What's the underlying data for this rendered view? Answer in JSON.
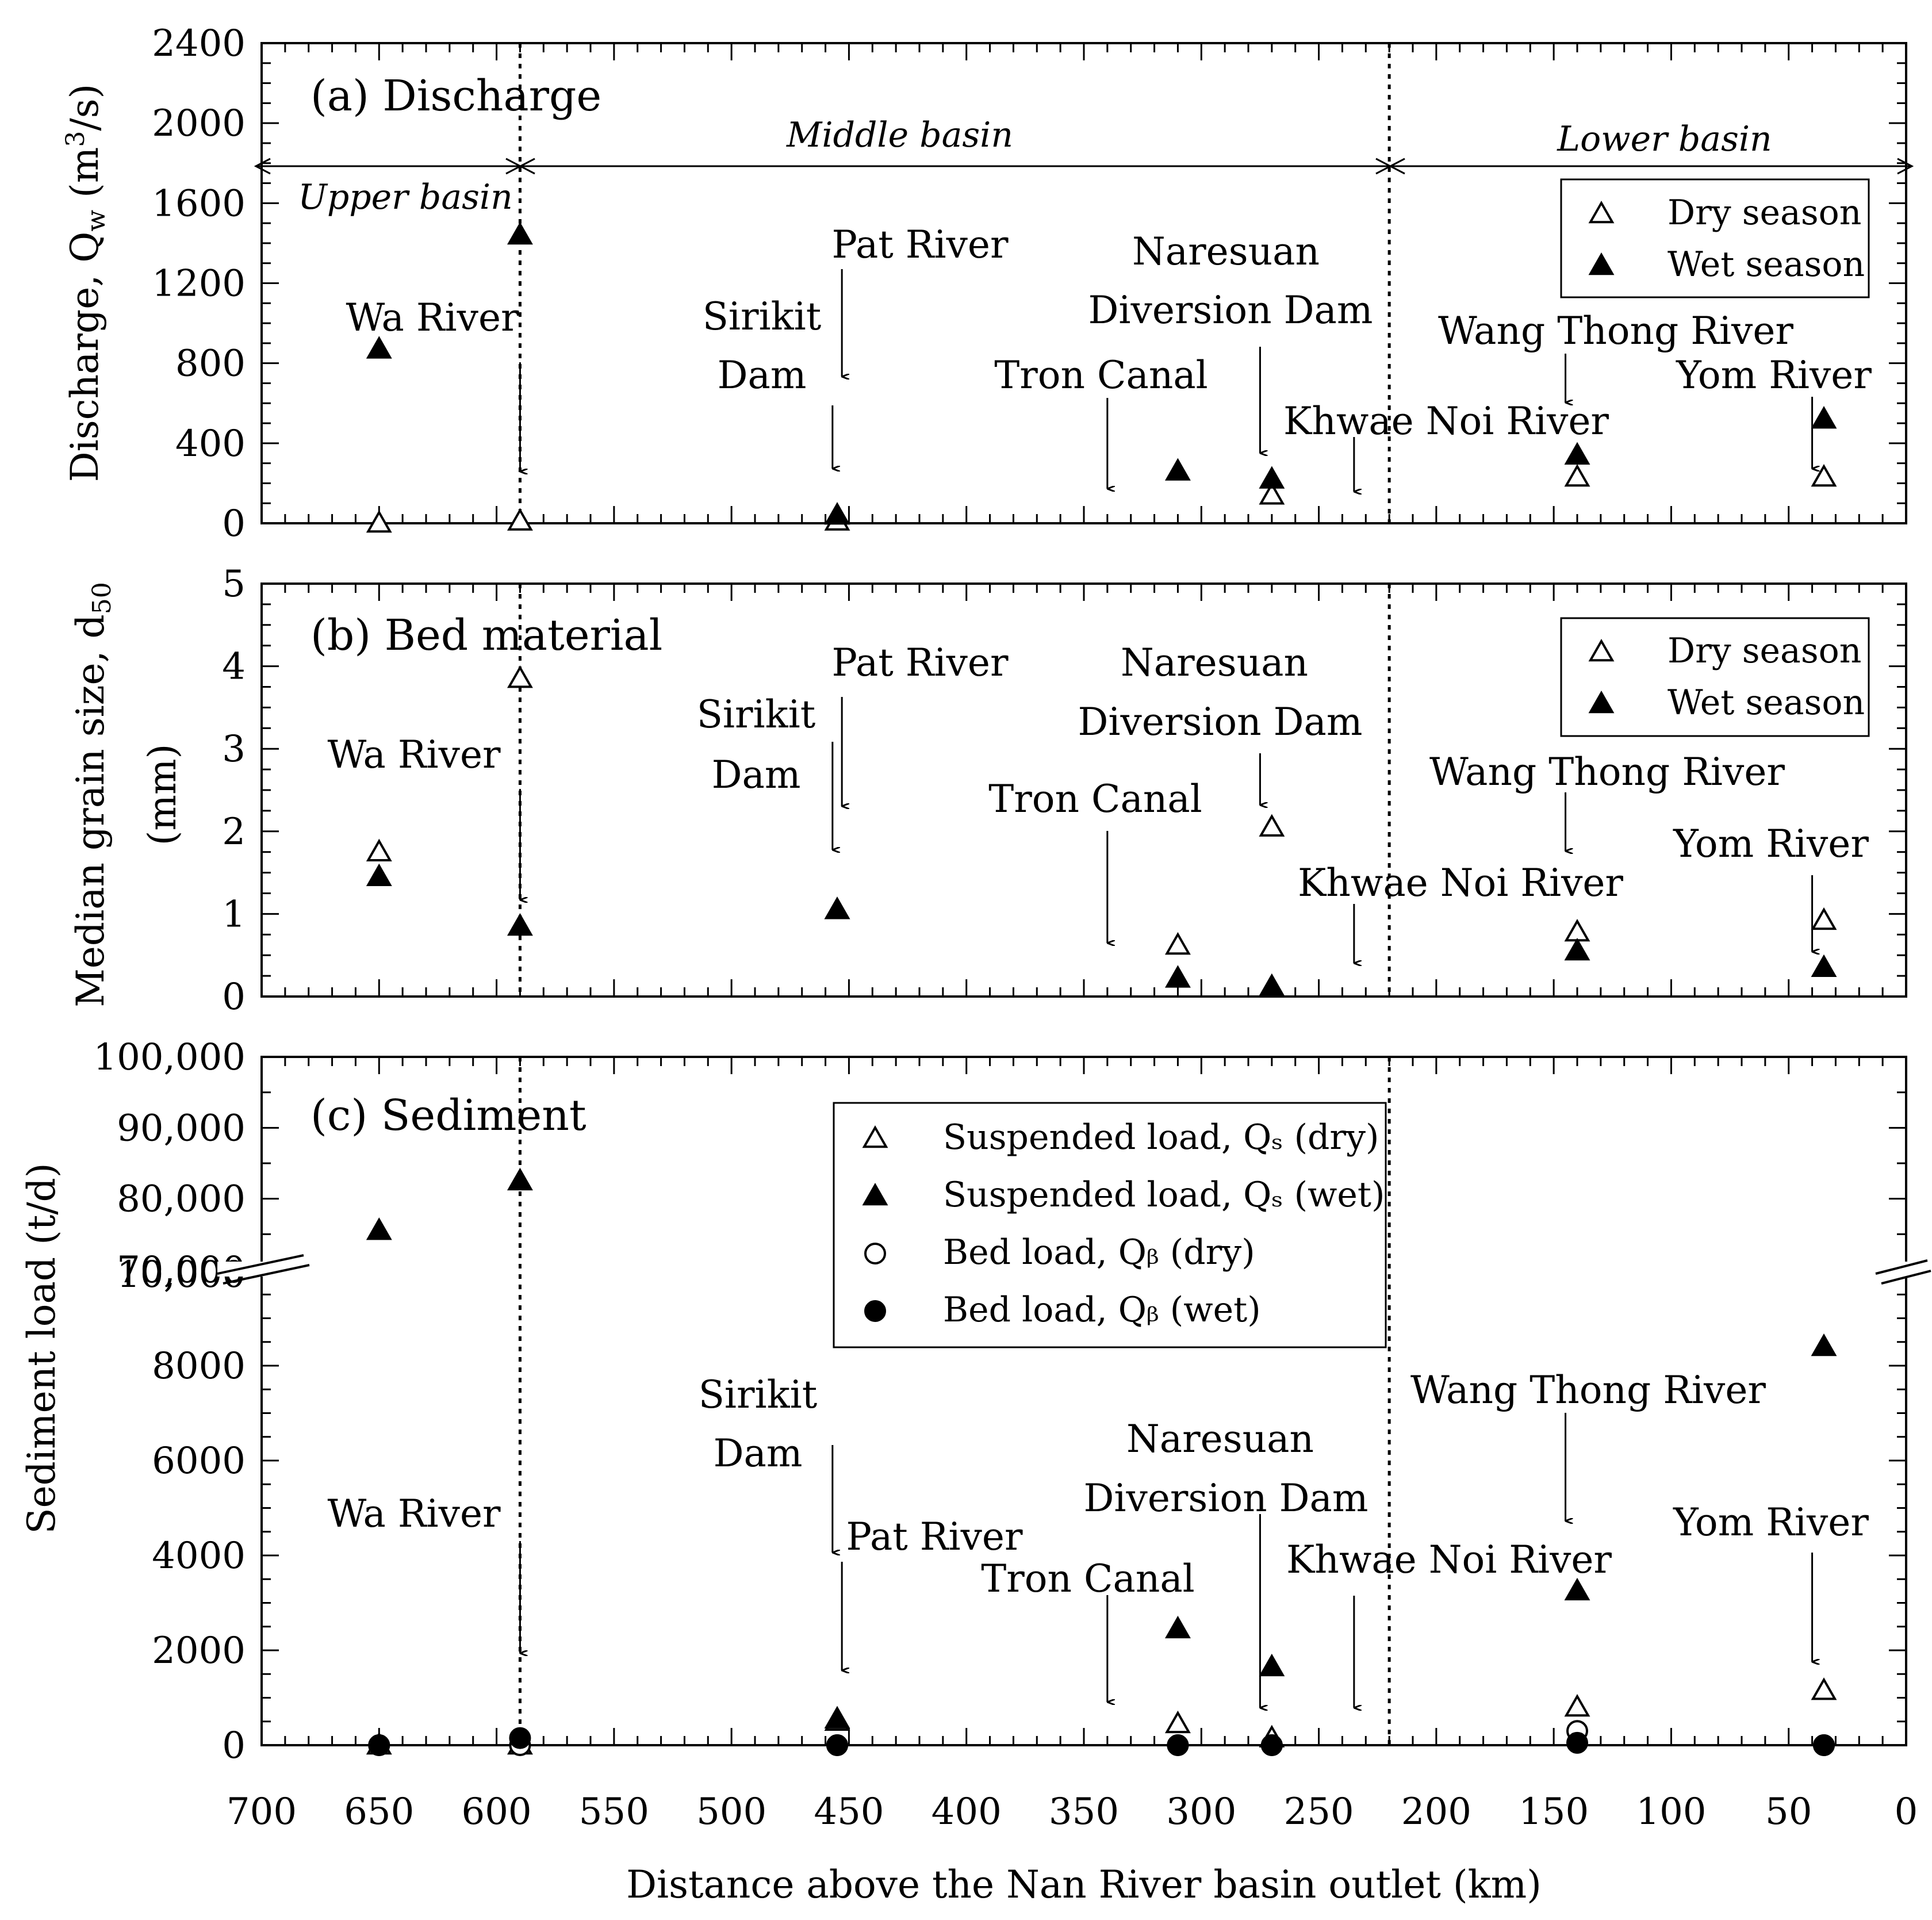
{
  "xlabel": "Distance above the Nan River basin outlet (km)",
  "x_ticks": [
    "700",
    "650",
    "600",
    "550",
    "500",
    "450",
    "400",
    "350",
    "300",
    "250",
    "200",
    "150",
    "100",
    "50",
    "0"
  ],
  "basins": {
    "upper": "Upper basin",
    "middle": "Middle basin",
    "lower": "Lower basin"
  },
  "legend_ab": {
    "dry": "Dry season",
    "wet": "Wet season"
  },
  "legend_c": {
    "s_dry": "Suspended load, Qₛ (dry)",
    "s_wet": "Suspended load, Qₛ (wet)",
    "b_dry": "Bed load, Qᵦ (dry)",
    "b_wet": "Bed load, Qᵦ (wet)"
  },
  "colors": {
    "ink": "#000000",
    "background": "#ffffff"
  },
  "chart_data": [
    {
      "type": "scatter",
      "title": "(a) Discharge",
      "ylabel": "Discharge, Qᵥᵥ (m³/s)",
      "ylabel_parts": {
        "main": "Discharge, Q",
        "sub": "w",
        "unit_open": " (m",
        "sup": "3",
        "unit_close": "/s)"
      },
      "xlim": [
        700,
        0
      ],
      "ylim": [
        0,
        2400
      ],
      "y_ticks": [
        "0",
        "400",
        "800",
        "1200",
        "1600",
        "2000",
        "2400"
      ],
      "series": [
        {
          "name": "Dry season",
          "marker": "open-triangle",
          "x": [
            650,
            590,
            455,
            270,
            140,
            35
          ],
          "y": [
            0,
            10,
            10,
            140,
            230,
            230
          ]
        },
        {
          "name": "Wet season",
          "marker": "filled-triangle",
          "x": [
            650,
            590,
            455,
            310,
            270,
            140,
            35
          ],
          "y": [
            870,
            1440,
            40,
            260,
            220,
            340,
            520
          ]
        }
      ],
      "annotations": [
        {
          "text": "Wa River",
          "x": 590
        },
        {
          "text": "Sirikit Dam",
          "x": 457
        },
        {
          "text": "Pat River",
          "x": 453
        },
        {
          "text": "Tron Canal",
          "x": 340
        },
        {
          "text": "Naresuan Diversion Dam",
          "x": 275
        },
        {
          "text": "Khwae Noi River",
          "x": 235
        },
        {
          "text": "Wang Thong River",
          "x": 145
        },
        {
          "text": "Yom River",
          "x": 40
        }
      ],
      "vlines": [
        590,
        220
      ],
      "annotation_labels": {
        "wa": "Wa River",
        "sirikit1": "Sirikit",
        "sirikit2": "Dam",
        "pat": "Pat River",
        "tron": "Tron Canal",
        "naresuan1": "Naresuan",
        "naresuan2": "Diversion Dam",
        "khwae": "Khwae Noi River",
        "wang": "Wang Thong River",
        "yom": "Yom River"
      }
    },
    {
      "type": "scatter",
      "title": "(b) Bed material",
      "ylabel_line1": "Median grain size, d₅₀",
      "ylabel_parts": {
        "main": "Median grain size, d",
        "sub": "50"
      },
      "ylabel_line2": "(mm)",
      "xlim": [
        700,
        0
      ],
      "ylim": [
        0,
        5
      ],
      "y_ticks": [
        "0",
        "1",
        "2",
        "3",
        "4",
        "5"
      ],
      "series": [
        {
          "name": "Dry season",
          "marker": "open-triangle",
          "x": [
            650,
            590,
            455,
            310,
            270,
            140,
            35
          ],
          "y": [
            1.75,
            3.85,
            1.05,
            0.62,
            2.05,
            0.78,
            0.92
          ]
        },
        {
          "name": "Wet season",
          "marker": "filled-triangle",
          "x": [
            650,
            590,
            455,
            310,
            270,
            140,
            35
          ],
          "y": [
            1.45,
            0.85,
            1.05,
            0.22,
            0.12,
            0.55,
            0.35
          ]
        }
      ],
      "annotation_labels": {
        "wa": "Wa River",
        "sirikit1": "Sirikit",
        "sirikit2": "Dam",
        "pat": "Pat River",
        "tron": "Tron Canal",
        "naresuan1": "Naresuan",
        "naresuan2": "Diversion Dam",
        "khwae": "Khwae Noi River",
        "wang": "Wang Thong River",
        "yom": "Yom River"
      }
    },
    {
      "type": "scatter",
      "title": "(c) Sediment",
      "ylabel": "Sediment load (t/d)",
      "xlim": [
        700,
        0
      ],
      "ylim_lower": [
        0,
        10000
      ],
      "ylim_upper": [
        70000,
        100000
      ],
      "y_ticks_lower": [
        "0",
        "2000",
        "4000",
        "6000",
        "8000",
        "10,000"
      ],
      "y_ticks_upper": [
        "70,000",
        "80,000",
        "90,000",
        "100,000"
      ],
      "series": [
        {
          "name": "Suspended load, Qs (dry)",
          "marker": "open-triangle",
          "x": [
            650,
            590,
            455,
            310,
            270,
            140,
            35
          ],
          "y": [
            0,
            0,
            500,
            450,
            150,
            800,
            1150
          ]
        },
        {
          "name": "Suspended load, Qs (wet)",
          "marker": "filled-triangle",
          "x": [
            650,
            590,
            455,
            310,
            270,
            140,
            35
          ],
          "y": [
            75500,
            82500,
            550,
            2450,
            1650,
            3250,
            8400
          ]
        },
        {
          "name": "Bed load, Qb (dry)",
          "marker": "open-circle",
          "x": [
            650,
            590,
            455,
            310,
            270,
            140,
            35
          ],
          "y": [
            0,
            0,
            0,
            0,
            0,
            300,
            0
          ]
        },
        {
          "name": "Bed load, Qb (wet)",
          "marker": "filled-circle",
          "x": [
            650,
            590,
            455,
            310,
            270,
            140,
            35
          ],
          "y": [
            0,
            150,
            0,
            0,
            0,
            50,
            0
          ]
        }
      ],
      "annotation_labels": {
        "wa": "Wa River",
        "sirikit1": "Sirikit",
        "sirikit2": "Dam",
        "pat": "Pat River",
        "tron": "Tron Canal",
        "naresuan1": "Naresuan",
        "naresuan2": "Diversion Dam",
        "khwae": "Khwae Noi River",
        "wang": "Wang Thong River",
        "yom": "Yom River"
      }
    }
  ]
}
